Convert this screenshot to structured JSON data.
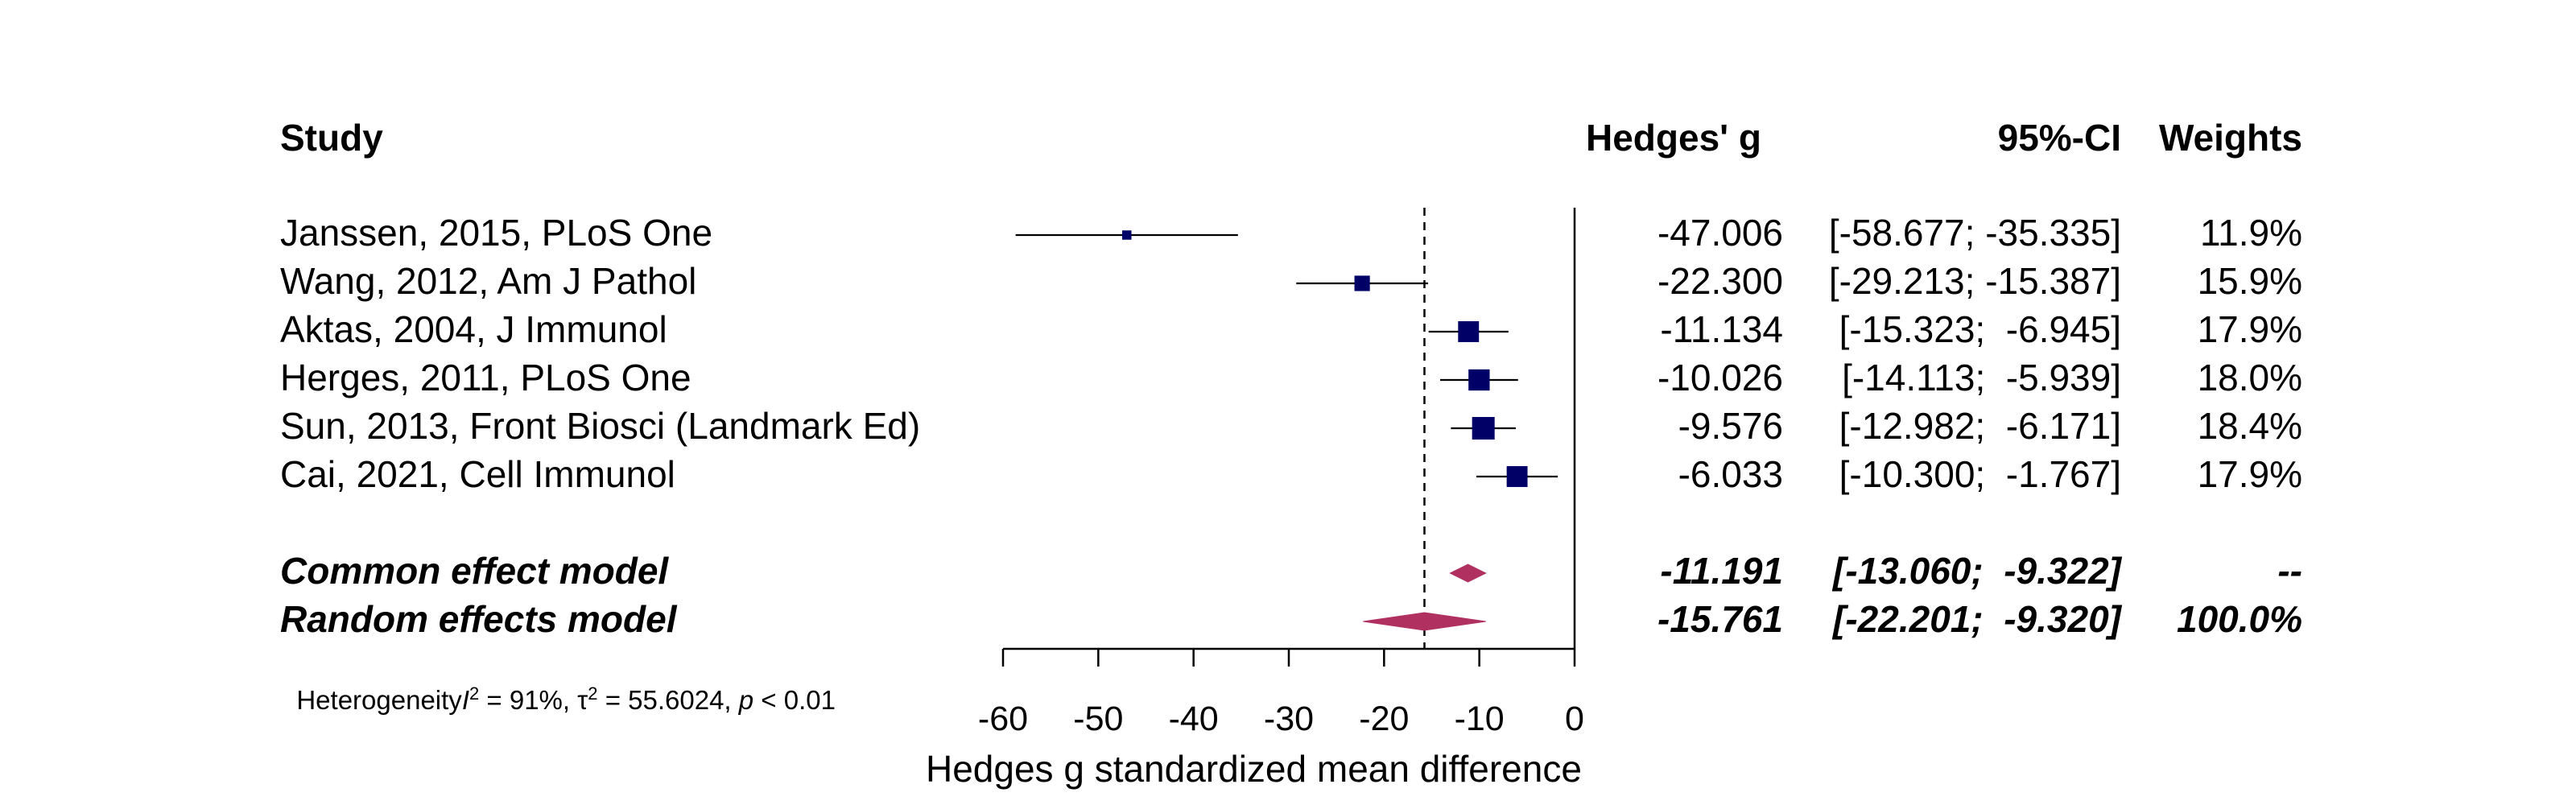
{
  "header": {
    "study": "Study",
    "effect": "Hedges' g",
    "ci": "95%-CI",
    "weights": "Weights"
  },
  "studies": [
    {
      "label": "Janssen, 2015, PLoS One",
      "g": -47.006,
      "lo": -58.677,
      "hi": -35.335,
      "g_text": "-47.006",
      "ci_text": "[-58.677; -35.335]",
      "weight": 11.9,
      "weight_text": "11.9%"
    },
    {
      "label": "Wang, 2012, Am J Pathol",
      "g": -22.3,
      "lo": -29.213,
      "hi": -15.387,
      "g_text": "-22.300",
      "ci_text": "[-29.213; -15.387]",
      "weight": 15.9,
      "weight_text": "15.9%"
    },
    {
      "label": "Aktas, 2004, J Immunol",
      "g": -11.134,
      "lo": -15.323,
      "hi": -6.945,
      "g_text": "-11.134",
      "ci_text": "[-15.323;  -6.945]",
      "weight": 17.9,
      "weight_text": "17.9%"
    },
    {
      "label": "Herges, 2011, PLoS One",
      "g": -10.026,
      "lo": -14.113,
      "hi": -5.939,
      "g_text": "-10.026",
      "ci_text": "[-14.113;  -5.939]",
      "weight": 18.0,
      "weight_text": "18.0%"
    },
    {
      "label": "Sun, 2013, Front Biosci (Landmark Ed)",
      "g": -9.576,
      "lo": -12.982,
      "hi": -6.171,
      "g_text": "-9.576",
      "ci_text": "[-12.982;  -6.171]",
      "weight": 18.4,
      "weight_text": "18.4%"
    },
    {
      "label": "Cai, 2021, Cell Immunol",
      "g": -6.033,
      "lo": -10.3,
      "hi": -1.767,
      "g_text": "-6.033",
      "ci_text": "[-10.300;  -1.767]",
      "weight": 17.9,
      "weight_text": "17.9%"
    }
  ],
  "models": [
    {
      "label": "Common effect model",
      "g": -11.191,
      "lo": -13.06,
      "hi": -9.322,
      "g_text": "-11.191",
      "ci_text": "[-13.060;  -9.322]",
      "weight_text": "--"
    },
    {
      "label": "Random effects model",
      "g": -15.761,
      "lo": -22.201,
      "hi": -9.32,
      "g_text": "-15.761",
      "ci_text": "[-22.201;  -9.320]",
      "weight_text": "100.0%"
    }
  ],
  "heterogeneity": {
    "prefix": "Heterogeneity",
    "i2_sym": "I",
    "i2_sup": "2",
    "i2_val": " = 91%, ",
    "tau_sym": "τ",
    "tau_sup": "2",
    "tau_val": " = 55.6024, ",
    "p_sym": "p",
    "p_val": " < 0.01"
  },
  "colors": {
    "square": "#000066",
    "diamond": "#b03060",
    "line": "#000000"
  },
  "chart_data": {
    "type": "forest",
    "xlabel": "Hedges g standardized mean difference",
    "xlim": [
      -60,
      0
    ],
    "xticks": [
      -60,
      -50,
      -40,
      -30,
      -20,
      -10,
      0
    ],
    "xtick_labels": [
      "-60",
      "-50",
      "-40",
      "-30",
      "-20",
      "-10",
      "0"
    ],
    "reference_line": 0,
    "pooled_dashed_line": -15.761
  }
}
